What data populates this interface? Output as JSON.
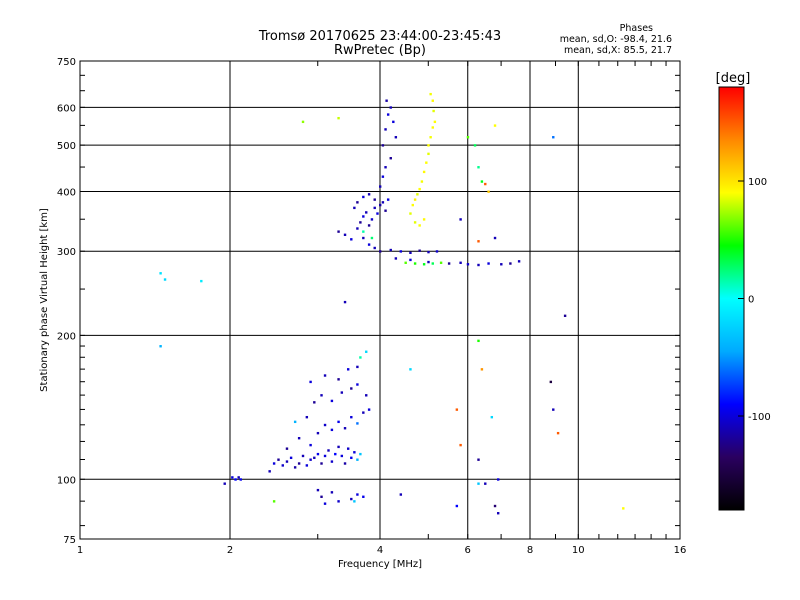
{
  "chart_data": {
    "type": "scatter",
    "title": "Tromsø 20170625 23:44:00-23:45:43",
    "subtitle": "RwPretec (Bp)",
    "xlabel": "Frequency [MHz]",
    "ylabel": "Stationary phase Virtual Height [km]",
    "x_scale": "log",
    "y_scale": "log",
    "xlim": [
      1,
      16
    ],
    "ylim": [
      75,
      750
    ],
    "x_ticks": [
      1,
      2,
      4,
      6,
      8,
      10,
      16
    ],
    "y_ticks": [
      75,
      100,
      200,
      300,
      400,
      500,
      600,
      750
    ],
    "grid": true,
    "phase_stats": {
      "title": "Phases",
      "o_mode": "mean, sd,O: -98.4, 21.6",
      "x_mode": "mean, sd,X:  85.5, 21.7"
    },
    "colorbar": {
      "label": "[deg]",
      "range": [
        -180,
        180
      ],
      "ticks": [
        100,
        0,
        -100
      ],
      "colors": [
        "#000000",
        "#2a0060",
        "#0000ff",
        "#00aaff",
        "#00ffff",
        "#00ff00",
        "#ffff00",
        "#ff8800",
        "#ff0000"
      ]
    },
    "series": [
      {
        "points": [
          [
            1.95,
            98,
            -110
          ],
          [
            2.02,
            101,
            -100
          ],
          [
            2.05,
            100,
            -90
          ],
          [
            2.08,
            101,
            -110
          ],
          [
            2.1,
            100,
            -95
          ],
          [
            2.4,
            104,
            -110
          ],
          [
            2.45,
            108,
            -100
          ],
          [
            2.5,
            110,
            -120
          ],
          [
            2.55,
            107,
            -105
          ],
          [
            2.6,
            109,
            -110
          ],
          [
            2.65,
            111,
            -100
          ],
          [
            2.7,
            106,
            -115
          ],
          [
            2.75,
            108,
            -120
          ],
          [
            2.8,
            112,
            -110
          ],
          [
            2.85,
            107,
            -100
          ],
          [
            2.9,
            110,
            -105
          ],
          [
            2.95,
            111,
            -110
          ],
          [
            3.0,
            113,
            -95
          ],
          [
            3.05,
            108,
            -120
          ],
          [
            3.1,
            112,
            -100
          ],
          [
            3.15,
            115,
            -110
          ],
          [
            3.2,
            109,
            -105
          ],
          [
            3.25,
            113,
            -90
          ],
          [
            3.3,
            117,
            -110
          ],
          [
            3.35,
            112,
            -100
          ],
          [
            3.4,
            108,
            -115
          ],
          [
            3.45,
            116,
            -105
          ],
          [
            3.5,
            111,
            -95
          ],
          [
            3.55,
            114,
            -100
          ],
          [
            3.6,
            110,
            -40
          ],
          [
            3.65,
            113,
            -30
          ],
          [
            2.6,
            116,
            -120
          ],
          [
            2.75,
            122,
            -110
          ],
          [
            2.9,
            118,
            -100
          ],
          [
            3.0,
            125,
            -110
          ],
          [
            3.1,
            130,
            -105
          ],
          [
            3.2,
            127,
            -100
          ],
          [
            3.3,
            132,
            -95
          ],
          [
            3.4,
            128,
            -110
          ],
          [
            3.5,
            135,
            -100
          ],
          [
            3.6,
            131,
            -60
          ],
          [
            3.7,
            138,
            -110
          ],
          [
            3.8,
            140,
            -100
          ],
          [
            2.7,
            132,
            -40
          ],
          [
            2.85,
            135,
            -110
          ],
          [
            2.95,
            145,
            -120
          ],
          [
            3.05,
            150,
            -110
          ],
          [
            3.2,
            146,
            -100
          ],
          [
            3.35,
            152,
            -110
          ],
          [
            3.5,
            155,
            -120
          ],
          [
            3.6,
            158,
            -100
          ],
          [
            3.75,
            150,
            -110
          ],
          [
            2.9,
            160,
            -100
          ],
          [
            3.1,
            165,
            -110
          ],
          [
            3.3,
            162,
            -120
          ],
          [
            3.45,
            170,
            -100
          ],
          [
            3.6,
            172,
            -110
          ],
          [
            3.65,
            180,
            15
          ],
          [
            3.0,
            95,
            -110
          ],
          [
            3.05,
            92,
            -120
          ],
          [
            3.1,
            89,
            -100
          ],
          [
            3.2,
            94,
            -110
          ],
          [
            3.3,
            90,
            -105
          ],
          [
            3.5,
            91,
            -110
          ],
          [
            3.6,
            93,
            -100
          ],
          [
            3.7,
            92,
            -95
          ],
          [
            3.55,
            90,
            -30
          ],
          [
            2.45,
            90,
            60
          ],
          [
            4.4,
            93,
            -110
          ],
          [
            3.3,
            330,
            -120
          ],
          [
            3.4,
            325,
            -110
          ],
          [
            3.5,
            318,
            -100
          ],
          [
            3.6,
            335,
            -110
          ],
          [
            3.65,
            345,
            -120
          ],
          [
            3.7,
            355,
            -100
          ],
          [
            3.75,
            362,
            -110
          ],
          [
            3.8,
            340,
            -120
          ],
          [
            3.85,
            350,
            -105
          ],
          [
            3.9,
            370,
            -110
          ],
          [
            3.95,
            360,
            -100
          ],
          [
            4.0,
            375,
            -115
          ],
          [
            4.05,
            380,
            -110
          ],
          [
            4.1,
            365,
            -120
          ],
          [
            4.15,
            385,
            -100
          ],
          [
            3.55,
            370,
            -110
          ],
          [
            3.6,
            380,
            -120
          ],
          [
            3.7,
            390,
            -100
          ],
          [
            3.8,
            395,
            -110
          ],
          [
            3.9,
            385,
            -120
          ],
          [
            4.0,
            410,
            -110
          ],
          [
            4.05,
            430,
            -100
          ],
          [
            4.1,
            450,
            -110
          ],
          [
            4.05,
            500,
            -120
          ],
          [
            4.1,
            540,
            -110
          ],
          [
            4.15,
            580,
            -100
          ],
          [
            4.2,
            600,
            -110
          ],
          [
            4.12,
            620,
            -115
          ],
          [
            4.25,
            560,
            -100
          ],
          [
            4.3,
            520,
            -110
          ],
          [
            4.2,
            470,
            -120
          ],
          [
            3.7,
            320,
            -110
          ],
          [
            3.8,
            310,
            -100
          ],
          [
            3.9,
            305,
            -110
          ],
          [
            4.0,
            300,
            -120
          ],
          [
            4.2,
            302,
            -110
          ],
          [
            4.4,
            300,
            -100
          ],
          [
            4.6,
            298,
            -110
          ],
          [
            4.8,
            301,
            -120
          ],
          [
            5.0,
            299,
            -110
          ],
          [
            5.2,
            300,
            -105
          ],
          [
            4.3,
            290,
            -110
          ],
          [
            4.6,
            288,
            -100
          ],
          [
            5.0,
            285,
            -110
          ],
          [
            5.5,
            283,
            -120
          ],
          [
            5.8,
            284,
            -110
          ],
          [
            6.0,
            282,
            -105
          ],
          [
            6.3,
            281,
            -110
          ],
          [
            6.6,
            283,
            -100
          ],
          [
            7.0,
            282,
            -110
          ],
          [
            7.3,
            283,
            -120
          ],
          [
            7.6,
            286,
            -110
          ],
          [
            3.4,
            235,
            -110
          ],
          [
            3.7,
            330,
            15
          ],
          [
            3.85,
            320,
            25
          ],
          [
            4.6,
            360,
            85
          ],
          [
            4.65,
            375,
            90
          ],
          [
            4.7,
            385,
            95
          ],
          [
            4.75,
            395,
            85
          ],
          [
            4.8,
            405,
            90
          ],
          [
            4.85,
            420,
            88
          ],
          [
            4.9,
            440,
            92
          ],
          [
            4.95,
            460,
            90
          ],
          [
            5.0,
            480,
            85
          ],
          [
            5.0,
            500,
            90
          ],
          [
            5.05,
            520,
            88
          ],
          [
            5.1,
            545,
            92
          ],
          [
            5.15,
            560,
            90
          ],
          [
            5.12,
            590,
            85
          ],
          [
            5.1,
            620,
            92
          ],
          [
            5.05,
            640,
            88
          ],
          [
            4.7,
            345,
            85
          ],
          [
            4.8,
            340,
            90
          ],
          [
            4.9,
            350,
            92
          ],
          [
            4.5,
            284,
            60
          ],
          [
            4.7,
            283,
            50
          ],
          [
            4.9,
            282,
            40
          ],
          [
            5.1,
            283,
            30
          ],
          [
            5.3,
            284,
            60
          ],
          [
            2.8,
            560,
            70
          ],
          [
            3.3,
            570,
            80
          ],
          [
            1.45,
            270,
            -15
          ],
          [
            1.48,
            262,
            -20
          ],
          [
            1.75,
            260,
            -10
          ],
          [
            1.45,
            190,
            -40
          ],
          [
            3.75,
            185,
            -20
          ],
          [
            4.6,
            170,
            -20
          ],
          [
            5.8,
            350,
            -110
          ],
          [
            6.0,
            520,
            60
          ],
          [
            6.2,
            500,
            30
          ],
          [
            6.3,
            450,
            20
          ],
          [
            6.4,
            420,
            40
          ],
          [
            6.5,
            415,
            150
          ],
          [
            6.6,
            400,
            110
          ],
          [
            6.8,
            550,
            90
          ],
          [
            6.8,
            320,
            -110
          ],
          [
            6.3,
            315,
            150
          ],
          [
            6.3,
            195,
            50
          ],
          [
            6.4,
            170,
            130
          ],
          [
            5.7,
            140,
            150
          ],
          [
            6.7,
            135,
            -20
          ],
          [
            5.8,
            118,
            150
          ],
          [
            6.3,
            110,
            -120
          ],
          [
            6.5,
            98,
            -110
          ],
          [
            6.9,
            100,
            -100
          ],
          [
            6.8,
            88,
            -130
          ],
          [
            6.9,
            85,
            -110
          ],
          [
            5.7,
            88,
            -90
          ],
          [
            6.3,
            98,
            -30
          ],
          [
            8.8,
            160,
            -150
          ],
          [
            8.9,
            140,
            -110
          ],
          [
            9.1,
            125,
            150
          ],
          [
            9.4,
            220,
            -120
          ],
          [
            8.9,
            520,
            -60
          ],
          [
            12.3,
            87,
            90
          ]
        ]
      }
    ]
  }
}
